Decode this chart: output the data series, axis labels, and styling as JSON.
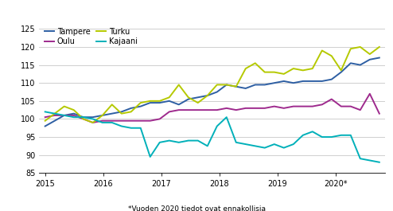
{
  "footnote": "*Vuoden 2020 tiedot ovat ennakollisia",
  "ylim": [
    85,
    126
  ],
  "yticks": [
    85,
    90,
    95,
    100,
    105,
    110,
    115,
    120,
    125
  ],
  "xtick_labels": [
    "2015",
    "2016",
    "2017",
    "2018",
    "2019",
    "2020*"
  ],
  "colors": {
    "Tampere": "#2e5fa3",
    "Oulu": "#9e2a8d",
    "Turku": "#b5c900",
    "Kajaani": "#00b0b9"
  },
  "Tampere": [
    98.0,
    99.5,
    101.0,
    101.5,
    100.5,
    100.5,
    101.0,
    101.5,
    102.0,
    103.0,
    103.5,
    104.5,
    104.5,
    105.0,
    104.0,
    105.5,
    106.0,
    106.5,
    107.5,
    109.5,
    109.0,
    108.5,
    109.5,
    109.5,
    110.0,
    110.5,
    110.0,
    110.5,
    110.5,
    110.5,
    111.0,
    113.0,
    115.5,
    115.0,
    116.5,
    117.0
  ],
  "Oulu": [
    100.5,
    101.0,
    101.0,
    101.0,
    100.0,
    99.0,
    99.5,
    99.5,
    99.5,
    99.5,
    99.5,
    99.5,
    100.0,
    102.0,
    102.5,
    102.5,
    102.5,
    102.5,
    102.5,
    103.0,
    102.5,
    103.0,
    103.0,
    103.0,
    103.5,
    103.0,
    103.5,
    103.5,
    103.5,
    104.0,
    105.5,
    103.5,
    103.5,
    102.5,
    107.0,
    101.5
  ],
  "Turku": [
    99.5,
    101.5,
    103.5,
    102.5,
    100.0,
    99.0,
    101.0,
    104.0,
    101.5,
    102.0,
    104.5,
    105.0,
    105.0,
    106.0,
    109.5,
    106.0,
    104.5,
    106.5,
    109.5,
    109.5,
    109.0,
    114.0,
    115.5,
    113.0,
    113.0,
    112.5,
    114.0,
    113.5,
    114.0,
    119.0,
    117.5,
    113.5,
    119.5,
    120.0,
    118.0,
    120.0
  ],
  "Kajaani": [
    102.0,
    101.5,
    101.0,
    100.5,
    100.5,
    100.0,
    99.0,
    99.0,
    98.0,
    97.5,
    97.5,
    89.5,
    93.5,
    94.0,
    93.5,
    94.0,
    94.0,
    92.5,
    98.0,
    100.5,
    93.5,
    93.0,
    92.5,
    92.0,
    93.0,
    92.0,
    93.0,
    95.5,
    96.5,
    95.0,
    95.0,
    95.5,
    95.5,
    89.0,
    88.5,
    88.0
  ]
}
